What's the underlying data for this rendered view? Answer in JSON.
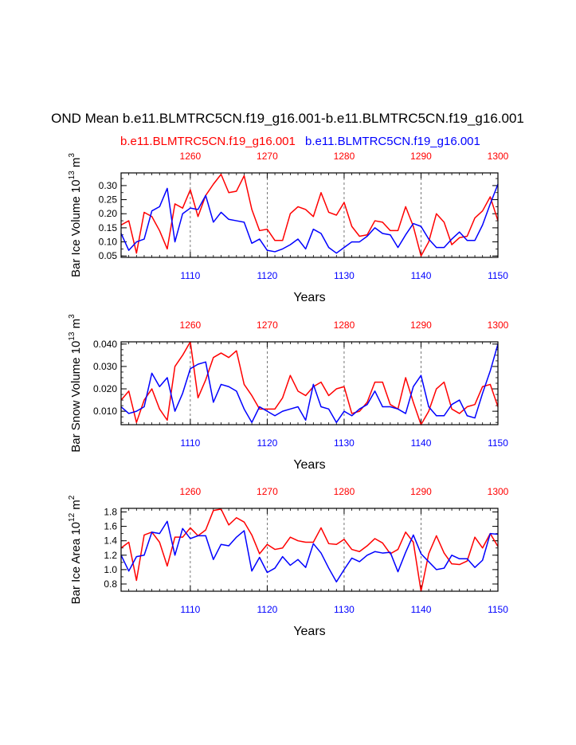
{
  "figure": {
    "title": "OND Mean b.e11.BLMTRC5CN.f19_g16.001-b.e11.BLMTRC5CN.f19_g16.001",
    "legend_red": "b.e11.BLMTRC5CN.f19_g16.001",
    "legend_blue": "b.e11.BLMTRC5CN.f19_g16.001",
    "red_color": "#ff0000",
    "blue_color": "#0000ff"
  },
  "chart_data": [
    {
      "type": "line",
      "ylabel_main": "Bar Ice Volume 10",
      "ylabel_exp": "13",
      "ylabel_unit": " m",
      "ylabel_unit_exp": "3",
      "xlabel": "Years",
      "xlim": [
        1101,
        1150
      ],
      "ylim": [
        0.045,
        0.345
      ],
      "yticks": [
        0.05,
        0.1,
        0.15,
        0.2,
        0.25,
        0.3
      ],
      "ytick_labels": [
        "0.05",
        "0.10",
        "0.15",
        "0.20",
        "0.25",
        "0.30"
      ],
      "minor_step": 0.025,
      "bottom_ticks": [
        1110,
        1120,
        1130,
        1140,
        1150
      ],
      "bottom_tick_labels": [
        "1110",
        "1120",
        "1130",
        "1140",
        "1150"
      ],
      "top_ticks": [
        1110,
        1120,
        1130,
        1140,
        1150
      ],
      "top_tick_labels": [
        "1260",
        "1270",
        "1280",
        "1290",
        "1300"
      ],
      "series": [
        {
          "name": "red",
          "color": "#ff0000",
          "values": [
            0.16,
            0.175,
            0.06,
            0.205,
            0.19,
            0.14,
            0.075,
            0.235,
            0.22,
            0.285,
            0.19,
            0.265,
            0.305,
            0.34,
            0.275,
            0.28,
            0.335,
            0.215,
            0.14,
            0.145,
            0.105,
            0.105,
            0.2,
            0.225,
            0.215,
            0.19,
            0.275,
            0.205,
            0.195,
            0.24,
            0.155,
            0.12,
            0.125,
            0.175,
            0.17,
            0.14,
            0.14,
            0.225,
            0.155,
            0.05,
            0.1,
            0.2,
            0.17,
            0.09,
            0.115,
            0.12,
            0.185,
            0.21,
            0.26,
            0.175
          ]
        },
        {
          "name": "blue",
          "color": "#0000ff",
          "values": [
            0.13,
            0.07,
            0.1,
            0.11,
            0.21,
            0.225,
            0.29,
            0.1,
            0.2,
            0.22,
            0.215,
            0.265,
            0.17,
            0.205,
            0.18,
            0.175,
            0.17,
            0.095,
            0.11,
            0.07,
            0.065,
            0.075,
            0.09,
            0.11,
            0.075,
            0.145,
            0.13,
            0.08,
            0.06,
            0.08,
            0.1,
            0.1,
            0.12,
            0.15,
            0.13,
            0.125,
            0.08,
            0.125,
            0.165,
            0.155,
            0.11,
            0.08,
            0.08,
            0.11,
            0.135,
            0.105,
            0.105,
            0.16,
            0.235,
            0.305
          ]
        }
      ]
    },
    {
      "type": "line",
      "ylabel_main": "Bar Snow Volume 10",
      "ylabel_exp": "13",
      "ylabel_unit": " m",
      "ylabel_unit_exp": "3",
      "xlabel": "Years",
      "xlim": [
        1101,
        1150
      ],
      "ylim": [
        0.004,
        0.041
      ],
      "yticks": [
        0.01,
        0.02,
        0.03,
        0.04
      ],
      "ytick_labels": [
        "0.010",
        "0.020",
        "0.030",
        "0.040"
      ],
      "minor_step": 0.0025,
      "bottom_ticks": [
        1110,
        1120,
        1130,
        1140,
        1150
      ],
      "bottom_tick_labels": [
        "1110",
        "1120",
        "1130",
        "1140",
        "1150"
      ],
      "top_ticks": [
        1110,
        1120,
        1130,
        1140,
        1150
      ],
      "top_tick_labels": [
        "1260",
        "1270",
        "1280",
        "1290",
        "1300"
      ],
      "series": [
        {
          "name": "red",
          "color": "#ff0000",
          "values": [
            0.015,
            0.019,
            0.005,
            0.015,
            0.02,
            0.011,
            0.006,
            0.03,
            0.035,
            0.041,
            0.016,
            0.024,
            0.034,
            0.036,
            0.034,
            0.037,
            0.022,
            0.017,
            0.011,
            0.011,
            0.011,
            0.016,
            0.026,
            0.019,
            0.017,
            0.021,
            0.023,
            0.017,
            0.02,
            0.021,
            0.009,
            0.01,
            0.014,
            0.023,
            0.023,
            0.013,
            0.011,
            0.025,
            0.014,
            0.004,
            0.01,
            0.02,
            0.023,
            0.011,
            0.009,
            0.012,
            0.013,
            0.021,
            0.022,
            0.012
          ]
        },
        {
          "name": "blue",
          "color": "#0000ff",
          "values": [
            0.012,
            0.009,
            0.01,
            0.012,
            0.027,
            0.021,
            0.025,
            0.01,
            0.018,
            0.029,
            0.031,
            0.032,
            0.014,
            0.022,
            0.021,
            0.019,
            0.011,
            0.005,
            0.012,
            0.01,
            0.008,
            0.01,
            0.011,
            0.012,
            0.006,
            0.022,
            0.012,
            0.011,
            0.005,
            0.01,
            0.008,
            0.011,
            0.013,
            0.019,
            0.012,
            0.012,
            0.011,
            0.009,
            0.021,
            0.026,
            0.012,
            0.008,
            0.008,
            0.013,
            0.015,
            0.008,
            0.007,
            0.018,
            0.028,
            0.04
          ]
        }
      ]
    },
    {
      "type": "line",
      "ylabel_main": "Bar Ice Area 10",
      "ylabel_exp": "12",
      "ylabel_unit": " m",
      "ylabel_unit_exp": "2",
      "xlabel": "Years",
      "xlim": [
        1101,
        1150
      ],
      "ylim": [
        0.7,
        1.85
      ],
      "yticks": [
        0.8,
        1.0,
        1.2,
        1.4,
        1.6,
        1.8
      ],
      "ytick_labels": [
        "0.8",
        "1.0",
        "1.2",
        "1.4",
        "1.6",
        "1.8"
      ],
      "minor_step": 0.1,
      "bottom_ticks": [
        1110,
        1120,
        1130,
        1140,
        1150
      ],
      "bottom_tick_labels": [
        "1110",
        "1120",
        "1130",
        "1140",
        "1150"
      ],
      "top_ticks": [
        1110,
        1120,
        1130,
        1140,
        1150
      ],
      "top_tick_labels": [
        "1260",
        "1270",
        "1280",
        "1290",
        "1300"
      ],
      "series": [
        {
          "name": "red",
          "color": "#ff0000",
          "values": [
            1.3,
            1.38,
            0.85,
            1.48,
            1.52,
            1.38,
            1.05,
            1.45,
            1.45,
            1.58,
            1.47,
            1.55,
            1.82,
            1.84,
            1.62,
            1.72,
            1.66,
            1.48,
            1.22,
            1.35,
            1.28,
            1.3,
            1.45,
            1.4,
            1.38,
            1.38,
            1.58,
            1.36,
            1.35,
            1.42,
            1.28,
            1.25,
            1.33,
            1.43,
            1.37,
            1.22,
            1.28,
            1.52,
            1.38,
            0.7,
            1.22,
            1.47,
            1.23,
            1.08,
            1.07,
            1.12,
            1.45,
            1.3,
            1.5,
            1.32
          ]
        },
        {
          "name": "blue",
          "color": "#0000ff",
          "values": [
            1.2,
            0.98,
            1.18,
            1.2,
            1.52,
            1.5,
            1.67,
            1.2,
            1.57,
            1.43,
            1.47,
            1.47,
            1.14,
            1.35,
            1.33,
            1.45,
            1.54,
            0.98,
            1.17,
            0.96,
            1.02,
            1.18,
            1.06,
            1.14,
            1.03,
            1.36,
            1.23,
            1.02,
            0.83,
            1.0,
            1.16,
            1.11,
            1.2,
            1.25,
            1.23,
            1.24,
            0.97,
            1.24,
            1.48,
            1.22,
            1.11,
            1.0,
            1.02,
            1.2,
            1.15,
            1.15,
            1.03,
            1.13,
            1.5,
            1.49
          ]
        }
      ]
    }
  ]
}
